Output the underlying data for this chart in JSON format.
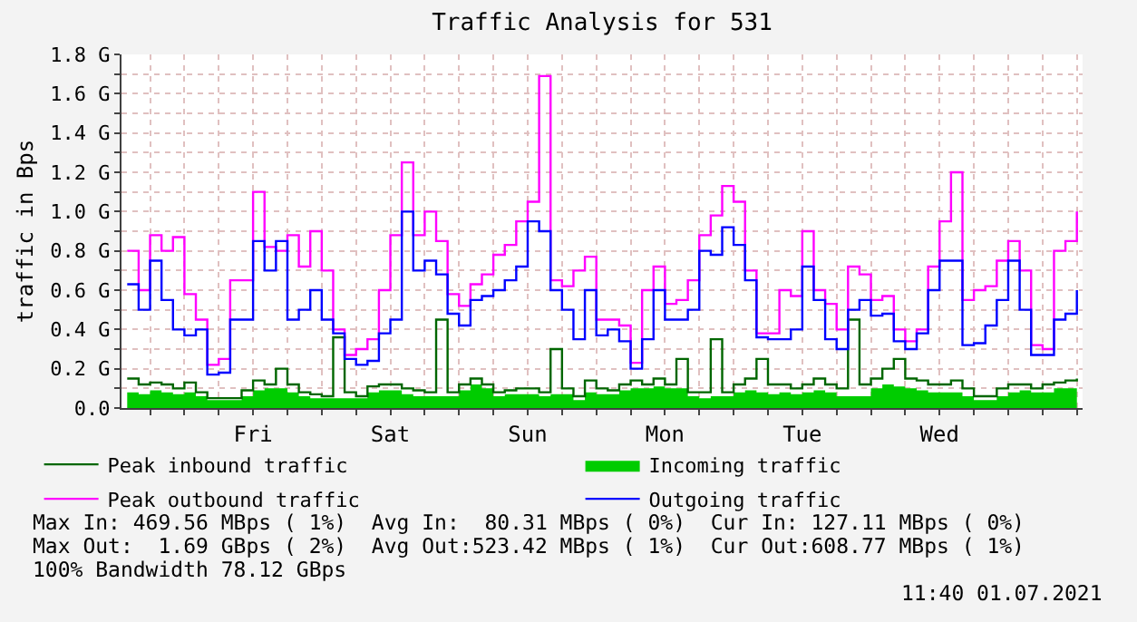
{
  "chart_data": {
    "type": "step",
    "title": "Traffic Analysis for 531",
    "ylabel": "traffic in Bps",
    "categories": [
      null,
      null,
      null,
      null,
      null,
      null,
      null,
      null,
      null,
      null,
      null,
      "Fri",
      null,
      null,
      null,
      null,
      null,
      null,
      null,
      null,
      null,
      null,
      null,
      "Sat",
      null,
      null,
      null,
      null,
      null,
      null,
      null,
      null,
      null,
      null,
      null,
      "Sun",
      null,
      null,
      null,
      null,
      null,
      null,
      null,
      null,
      null,
      null,
      null,
      "Mon",
      null,
      null,
      null,
      null,
      null,
      null,
      null,
      null,
      null,
      null,
      null,
      "Tue",
      null,
      null,
      null,
      null,
      null,
      null,
      null,
      null,
      null,
      null,
      null,
      "Wed",
      null,
      null,
      null,
      null,
      null,
      null,
      null,
      null,
      null,
      null,
      null,
      null
    ],
    "series": [
      {
        "name": "Peak inbound traffic",
        "color": "#006600",
        "values": [
          0.15,
          0.12,
          0.13,
          0.12,
          0.1,
          0.13,
          0.08,
          0.05,
          0.05,
          0.05,
          0.09,
          0.14,
          0.12,
          0.2,
          0.12,
          0.08,
          0.07,
          0.06,
          0.36,
          0.08,
          0.06,
          0.11,
          0.12,
          0.12,
          0.1,
          0.09,
          0.08,
          0.45,
          0.08,
          0.12,
          0.15,
          0.12,
          0.08,
          0.09,
          0.1,
          0.1,
          0.08,
          0.3,
          0.1,
          0.06,
          0.14,
          0.1,
          0.09,
          0.12,
          0.14,
          0.12,
          0.15,
          0.12,
          0.25,
          0.08,
          0.08,
          0.35,
          0.08,
          0.12,
          0.15,
          0.25,
          0.12,
          0.12,
          0.1,
          0.12,
          0.15,
          0.12,
          0.1,
          0.45,
          0.12,
          0.15,
          0.2,
          0.25,
          0.15,
          0.14,
          0.12,
          0.12,
          0.14,
          0.1,
          0.06,
          0.06,
          0.1,
          0.12,
          0.12,
          0.1,
          0.12,
          0.13,
          0.14,
          0.15
        ]
      },
      {
        "name": "Incoming traffic",
        "color": "#00cc00",
        "type": "area",
        "values": [
          0.08,
          0.07,
          0.09,
          0.08,
          0.07,
          0.08,
          0.06,
          0.04,
          0.04,
          0.04,
          0.06,
          0.09,
          0.1,
          0.1,
          0.08,
          0.06,
          0.05,
          0.05,
          0.05,
          0.05,
          0.05,
          0.08,
          0.09,
          0.09,
          0.07,
          0.06,
          0.06,
          0.06,
          0.06,
          0.09,
          0.12,
          0.1,
          0.06,
          0.07,
          0.07,
          0.07,
          0.06,
          0.07,
          0.07,
          0.04,
          0.08,
          0.07,
          0.07,
          0.09,
          0.1,
          0.1,
          0.11,
          0.1,
          0.1,
          0.06,
          0.05,
          0.06,
          0.06,
          0.08,
          0.09,
          0.08,
          0.07,
          0.08,
          0.07,
          0.08,
          0.09,
          0.08,
          0.06,
          0.06,
          0.06,
          0.1,
          0.12,
          0.11,
          0.1,
          0.09,
          0.08,
          0.08,
          0.08,
          0.06,
          0.04,
          0.04,
          0.06,
          0.08,
          0.09,
          0.08,
          0.08,
          0.1,
          0.1,
          0.11
        ]
      },
      {
        "name": "Peak outbound traffic",
        "color": "#ff00ff",
        "values": [
          0.8,
          0.6,
          0.88,
          0.8,
          0.87,
          0.58,
          0.45,
          0.22,
          0.25,
          0.65,
          0.65,
          1.1,
          0.82,
          0.8,
          0.88,
          0.72,
          0.9,
          0.7,
          0.4,
          0.27,
          0.3,
          0.35,
          0.6,
          0.88,
          1.25,
          0.88,
          1.0,
          0.85,
          0.58,
          0.52,
          0.63,
          0.68,
          0.78,
          0.83,
          0.95,
          1.05,
          1.69,
          0.65,
          0.62,
          0.7,
          0.77,
          0.45,
          0.45,
          0.42,
          0.23,
          0.6,
          0.72,
          0.53,
          0.55,
          0.65,
          0.88,
          0.98,
          1.13,
          1.05,
          0.7,
          0.38,
          0.38,
          0.6,
          0.57,
          0.9,
          0.6,
          0.53,
          0.4,
          0.72,
          0.68,
          0.55,
          0.57,
          0.4,
          0.34,
          0.4,
          0.72,
          0.95,
          1.2,
          0.55,
          0.6,
          0.62,
          0.75,
          0.85,
          0.7,
          0.32,
          0.3,
          0.8,
          0.85,
          1.0
        ]
      },
      {
        "name": "Outgoing traffic",
        "color": "#0000ff",
        "values": [
          0.63,
          0.5,
          0.75,
          0.55,
          0.4,
          0.37,
          0.4,
          0.17,
          0.18,
          0.45,
          0.45,
          0.85,
          0.7,
          0.85,
          0.45,
          0.5,
          0.6,
          0.45,
          0.38,
          0.25,
          0.22,
          0.24,
          0.38,
          0.45,
          1.0,
          0.7,
          0.75,
          0.68,
          0.48,
          0.42,
          0.55,
          0.57,
          0.6,
          0.65,
          0.72,
          0.95,
          0.9,
          0.6,
          0.5,
          0.35,
          0.6,
          0.37,
          0.4,
          0.34,
          0.2,
          0.35,
          0.6,
          0.45,
          0.45,
          0.5,
          0.8,
          0.78,
          0.92,
          0.83,
          0.65,
          0.36,
          0.35,
          0.35,
          0.4,
          0.72,
          0.55,
          0.35,
          0.3,
          0.5,
          0.55,
          0.47,
          0.48,
          0.34,
          0.3,
          0.38,
          0.6,
          0.75,
          0.75,
          0.32,
          0.33,
          0.42,
          0.55,
          0.75,
          0.5,
          0.27,
          0.27,
          0.45,
          0.48,
          0.6
        ]
      }
    ],
    "ylim": [
      0,
      1.8
    ],
    "yticks": [
      {
        "value": 0,
        "label": "0.0"
      },
      {
        "value": 0.1,
        "label": null
      },
      {
        "value": 0.2,
        "label": "0.2 G"
      },
      {
        "value": 0.3,
        "label": null
      },
      {
        "value": 0.4,
        "label": "0.4 G"
      },
      {
        "value": 0.5,
        "label": null
      },
      {
        "value": 0.6,
        "label": "0.6 G"
      },
      {
        "value": 0.7,
        "label": null
      },
      {
        "value": 0.8,
        "label": "0.8 G"
      },
      {
        "value": 0.9,
        "label": null
      },
      {
        "value": 1.0,
        "label": "1.0 G"
      },
      {
        "value": 1.1,
        "label": null
      },
      {
        "value": 1.2,
        "label": "1.2 G"
      },
      {
        "value": 1.3,
        "label": null
      },
      {
        "value": 1.4,
        "label": "1.4 G"
      },
      {
        "value": 1.5,
        "label": null
      },
      {
        "value": 1.6,
        "label": "1.6 G"
      },
      {
        "value": 1.7,
        "label": null
      },
      {
        "value": 1.8,
        "label": "1.8 G"
      }
    ],
    "grid": true,
    "legend": "bottom",
    "marker": "none",
    "line_style": "solid",
    "annotations": [
      "Max In: 469.56 MBps ( 1%)  Avg In:  80.31 MBps ( 0%)  Cur In: 127.11 MBps ( 0%)",
      "Max Out:  1.69 GBps ( 2%)  Avg Out:523.42 MBps ( 1%)  Cur Out:608.77 MBps ( 1%)",
      "100% Bandwidth 78.12 GBps",
      "11:40 01.07.2021"
    ]
  }
}
